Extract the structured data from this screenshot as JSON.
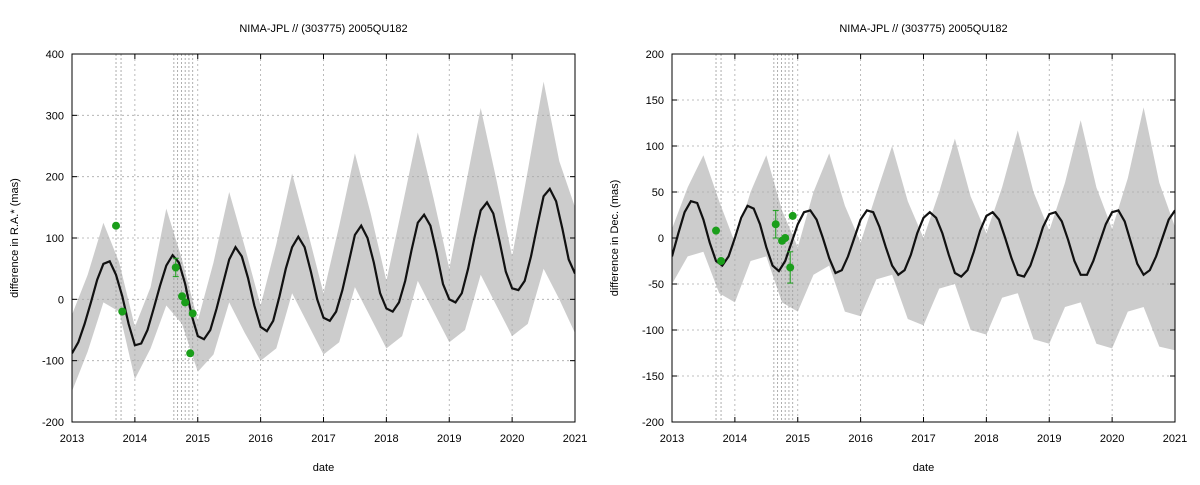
{
  "chart_data": [
    {
      "type": "line",
      "title": "NIMA-JPL // (303775) 2005QU182",
      "xlabel": "date",
      "ylabel": "difference in R.A.* (mas)",
      "xlim": [
        2013,
        2021
      ],
      "ylim": [
        -200,
        400
      ],
      "x_ticks": [
        2013,
        2014,
        2015,
        2016,
        2017,
        2018,
        2019,
        2020,
        2021
      ],
      "y_ticks": [
        -200,
        -100,
        0,
        100,
        200,
        300,
        400
      ],
      "grid": true,
      "colors": {
        "model_line": "#111111",
        "uncertainty_band": "#cccccc",
        "observations": "#1a9e1a",
        "grid": "#aaaaaa"
      },
      "model_curve": {
        "x": [
          2013.0,
          2013.1,
          2013.2,
          2013.3,
          2013.4,
          2013.5,
          2013.6,
          2013.7,
          2013.8,
          2013.9,
          2014.0,
          2014.1,
          2014.2,
          2014.3,
          2014.4,
          2014.5,
          2014.6,
          2014.7,
          2014.8,
          2014.9,
          2015.0,
          2015.1,
          2015.2,
          2015.3,
          2015.4,
          2015.5,
          2015.6,
          2015.7,
          2015.8,
          2015.9,
          2016.0,
          2016.1,
          2016.2,
          2016.3,
          2016.4,
          2016.5,
          2016.6,
          2016.7,
          2016.8,
          2016.9,
          2017.0,
          2017.1,
          2017.2,
          2017.3,
          2017.4,
          2017.5,
          2017.6,
          2017.7,
          2017.8,
          2017.9,
          2018.0,
          2018.1,
          2018.2,
          2018.3,
          2018.4,
          2018.5,
          2018.6,
          2018.7,
          2018.8,
          2018.9,
          2019.0,
          2019.1,
          2019.2,
          2019.3,
          2019.4,
          2019.5,
          2019.6,
          2019.7,
          2019.8,
          2019.9,
          2020.0,
          2020.1,
          2020.2,
          2020.3,
          2020.4,
          2020.5,
          2020.6,
          2020.7,
          2020.8,
          2020.9,
          2021.0
        ],
        "y": [
          -88,
          -70,
          -40,
          -5,
          32,
          58,
          62,
          40,
          5,
          -40,
          -75,
          -72,
          -50,
          -15,
          22,
          55,
          72,
          60,
          25,
          -25,
          -60,
          -65,
          -50,
          -15,
          25,
          65,
          85,
          70,
          35,
          -10,
          -45,
          -52,
          -35,
          5,
          50,
          85,
          102,
          85,
          45,
          0,
          -30,
          -35,
          -20,
          15,
          60,
          105,
          120,
          100,
          60,
          10,
          -15,
          -20,
          -5,
          30,
          80,
          125,
          138,
          120,
          75,
          25,
          0,
          -5,
          10,
          50,
          100,
          145,
          158,
          140,
          95,
          45,
          18,
          15,
          30,
          70,
          120,
          168,
          180,
          160,
          115,
          65,
          42
        ]
      },
      "uncertainty_band": {
        "x": [
          2013.0,
          2013.25,
          2013.5,
          2013.75,
          2014.0,
          2014.25,
          2014.5,
          2014.75,
          2015.0,
          2015.25,
          2015.5,
          2015.75,
          2016.0,
          2016.25,
          2016.5,
          2016.75,
          2017.0,
          2017.25,
          2017.5,
          2017.75,
          2018.0,
          2018.25,
          2018.5,
          2018.75,
          2019.0,
          2019.25,
          2019.5,
          2019.75,
          2020.0,
          2020.25,
          2020.5,
          2020.75,
          2021.0
        ],
        "upper": [
          -25,
          40,
          125,
          60,
          -45,
          20,
          148,
          65,
          -35,
          60,
          175,
          85,
          -10,
          90,
          205,
          110,
          10,
          120,
          238,
          140,
          30,
          150,
          272,
          165,
          50,
          180,
          312,
          195,
          70,
          210,
          355,
          225,
          150
        ],
        "lower": [
          -150,
          -85,
          -5,
          -20,
          -130,
          -80,
          -10,
          -40,
          -118,
          -90,
          -5,
          -55,
          -100,
          -80,
          10,
          -40,
          -90,
          -70,
          20,
          -30,
          -80,
          -60,
          30,
          -20,
          -70,
          -50,
          40,
          -10,
          -60,
          -40,
          50,
          0,
          -55
        ]
      },
      "observations": {
        "x": [
          2013.7,
          2013.8,
          2014.65,
          2014.75,
          2014.8,
          2014.88,
          2014.92
        ],
        "y": [
          120,
          -20,
          52,
          5,
          -5,
          -88,
          -23
        ],
        "yerr_low": [
          0,
          0,
          15,
          0,
          0,
          0,
          0
        ],
        "yerr_high": [
          0,
          0,
          15,
          0,
          0,
          0,
          0
        ]
      },
      "vertical_markers": [
        2013.7,
        2013.78,
        2014.62,
        2014.68,
        2014.74,
        2014.8,
        2014.86,
        2014.92
      ]
    },
    {
      "type": "line",
      "title": "NIMA-JPL // (303775) 2005QU182",
      "xlabel": "date",
      "ylabel": "difference in Dec. (mas)",
      "xlim": [
        2013,
        2021
      ],
      "ylim": [
        -200,
        200
      ],
      "x_ticks": [
        2013,
        2014,
        2015,
        2016,
        2017,
        2018,
        2019,
        2020,
        2021
      ],
      "y_ticks": [
        -200,
        -150,
        -100,
        -50,
        0,
        50,
        100,
        150,
        200
      ],
      "grid": true,
      "colors": {
        "model_line": "#111111",
        "uncertainty_band": "#cccccc",
        "observations": "#1a9e1a",
        "grid": "#aaaaaa"
      },
      "model_curve": {
        "x": [
          2013.0,
          2013.1,
          2013.2,
          2013.3,
          2013.4,
          2013.5,
          2013.6,
          2013.7,
          2013.8,
          2013.9,
          2014.0,
          2014.1,
          2014.2,
          2014.3,
          2014.4,
          2014.5,
          2014.6,
          2014.7,
          2014.8,
          2014.9,
          2015.0,
          2015.1,
          2015.2,
          2015.3,
          2015.4,
          2015.5,
          2015.6,
          2015.7,
          2015.8,
          2015.9,
          2016.0,
          2016.1,
          2016.2,
          2016.3,
          2016.4,
          2016.5,
          2016.6,
          2016.7,
          2016.8,
          2016.9,
          2017.0,
          2017.1,
          2017.2,
          2017.3,
          2017.4,
          2017.5,
          2017.6,
          2017.7,
          2017.8,
          2017.9,
          2018.0,
          2018.1,
          2018.2,
          2018.3,
          2018.4,
          2018.5,
          2018.6,
          2018.7,
          2018.8,
          2018.9,
          2019.0,
          2019.1,
          2019.2,
          2019.3,
          2019.4,
          2019.5,
          2019.6,
          2019.7,
          2019.8,
          2019.9,
          2020.0,
          2020.1,
          2020.2,
          2020.3,
          2020.4,
          2020.5,
          2020.6,
          2020.7,
          2020.8,
          2020.9,
          2021.0
        ],
        "y": [
          -20,
          5,
          28,
          40,
          38,
          20,
          -5,
          -25,
          -30,
          -20,
          0,
          22,
          35,
          32,
          15,
          -10,
          -30,
          -36,
          -25,
          -5,
          15,
          28,
          30,
          20,
          0,
          -22,
          -38,
          -35,
          -20,
          0,
          20,
          30,
          28,
          12,
          -10,
          -30,
          -40,
          -35,
          -18,
          5,
          22,
          28,
          22,
          5,
          -18,
          -38,
          -42,
          -35,
          -15,
          8,
          24,
          28,
          20,
          0,
          -22,
          -40,
          -42,
          -30,
          -10,
          12,
          26,
          28,
          18,
          -2,
          -25,
          -40,
          -40,
          -25,
          -5,
          15,
          28,
          30,
          18,
          -5,
          -28,
          -40,
          -35,
          -20,
          0,
          20,
          30
        ]
      },
      "uncertainty_band": {
        "x": [
          2013.0,
          2013.25,
          2013.5,
          2013.75,
          2014.0,
          2014.25,
          2014.5,
          2014.75,
          2015.0,
          2015.25,
          2015.5,
          2015.75,
          2016.0,
          2016.25,
          2016.5,
          2016.75,
          2017.0,
          2017.25,
          2017.5,
          2017.75,
          2018.0,
          2018.25,
          2018.5,
          2018.75,
          2019.0,
          2019.25,
          2019.5,
          2019.75,
          2020.0,
          2020.25,
          2020.5,
          2020.75,
          2021.0
        ],
        "upper": [
          10,
          55,
          90,
          40,
          -5,
          50,
          90,
          30,
          -10,
          50,
          92,
          35,
          -5,
          48,
          100,
          40,
          0,
          50,
          108,
          45,
          5,
          55,
          117,
          50,
          8,
          60,
          128,
          55,
          10,
          65,
          142,
          60,
          12
        ],
        "lower": [
          -50,
          -20,
          -15,
          -60,
          -70,
          -25,
          -20,
          -70,
          -80,
          -40,
          -30,
          -80,
          -85,
          -45,
          -40,
          -88,
          -95,
          -55,
          -50,
          -100,
          -105,
          -65,
          -60,
          -110,
          -115,
          -75,
          -70,
          -115,
          -120,
          -80,
          -75,
          -118,
          -122
        ]
      },
      "observations": {
        "x": [
          2013.7,
          2013.78,
          2014.65,
          2014.75,
          2014.8,
          2014.88,
          2014.92
        ],
        "y": [
          8,
          -25,
          15,
          -3,
          0,
          -32,
          24
        ],
        "yerr_low": [
          0,
          0,
          15,
          0,
          0,
          17,
          0
        ],
        "yerr_high": [
          0,
          0,
          15,
          0,
          0,
          17,
          0
        ]
      },
      "vertical_markers": [
        2013.7,
        2013.78,
        2014.62,
        2014.68,
        2014.74,
        2014.8,
        2014.86,
        2014.92
      ]
    }
  ]
}
